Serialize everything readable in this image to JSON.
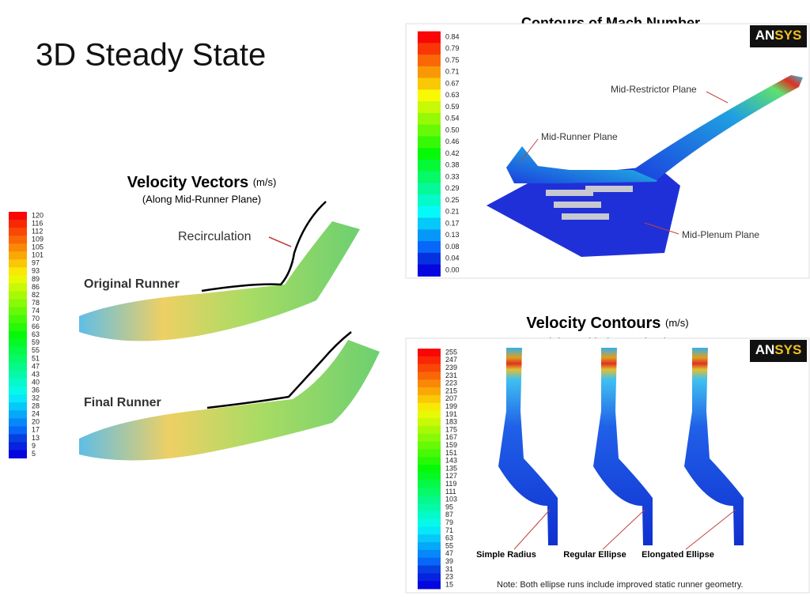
{
  "slide": {
    "title": "3D Steady State"
  },
  "vectors_panel": {
    "heading": "Velocity Vectors",
    "unit": "(m/s)",
    "subtitle": "(Along Mid-Runner Plane)",
    "annotation": "Recirculation",
    "top_label": "Original Runner",
    "bottom_label": "Final Runner",
    "colorbar": [
      "120",
      "116",
      "112",
      "109",
      "105",
      "101",
      "97",
      "93",
      "89",
      "86",
      "82",
      "78",
      "74",
      "70",
      "66",
      "63",
      "59",
      "55",
      "51",
      "47",
      "43",
      "40",
      "36",
      "32",
      "28",
      "24",
      "20",
      "17",
      "13",
      "9",
      "5"
    ]
  },
  "mach_panel": {
    "heading": "Contours of Mach Number",
    "logo": [
      "AN",
      "SYS"
    ],
    "labels": [
      "Mid-Restrictor Plane",
      "Mid-Runner Plane",
      "Mid-Plenum Plane"
    ],
    "colorbar": [
      "0.84",
      "0.79",
      "0.75",
      "0.71",
      "0.67",
      "0.63",
      "0.59",
      "0.54",
      "0.50",
      "0.46",
      "0.42",
      "0.38",
      "0.33",
      "0.29",
      "0.25",
      "0.21",
      "0.17",
      "0.13",
      "0.08",
      "0.04",
      "0.00"
    ]
  },
  "contours_panel": {
    "heading": "Velocity Contours",
    "unit": "(m/s)",
    "subtitle": "(Along Mid-Plenum Plane)",
    "logo": [
      "AN",
      "SYS"
    ],
    "labels": [
      "Simple Radius",
      "Regular Ellipse",
      "Elongated Ellipse"
    ],
    "note": "Note:  Both ellipse runs include improved static runner geometry.",
    "colorbar": [
      "255",
      "247",
      "239",
      "231",
      "223",
      "215",
      "207",
      "199",
      "191",
      "183",
      "175",
      "167",
      "159",
      "151",
      "143",
      "135",
      "127",
      "119",
      "111",
      "103",
      "95",
      "87",
      "79",
      "71",
      "63",
      "55",
      "47",
      "39",
      "31",
      "23",
      "15"
    ]
  }
}
